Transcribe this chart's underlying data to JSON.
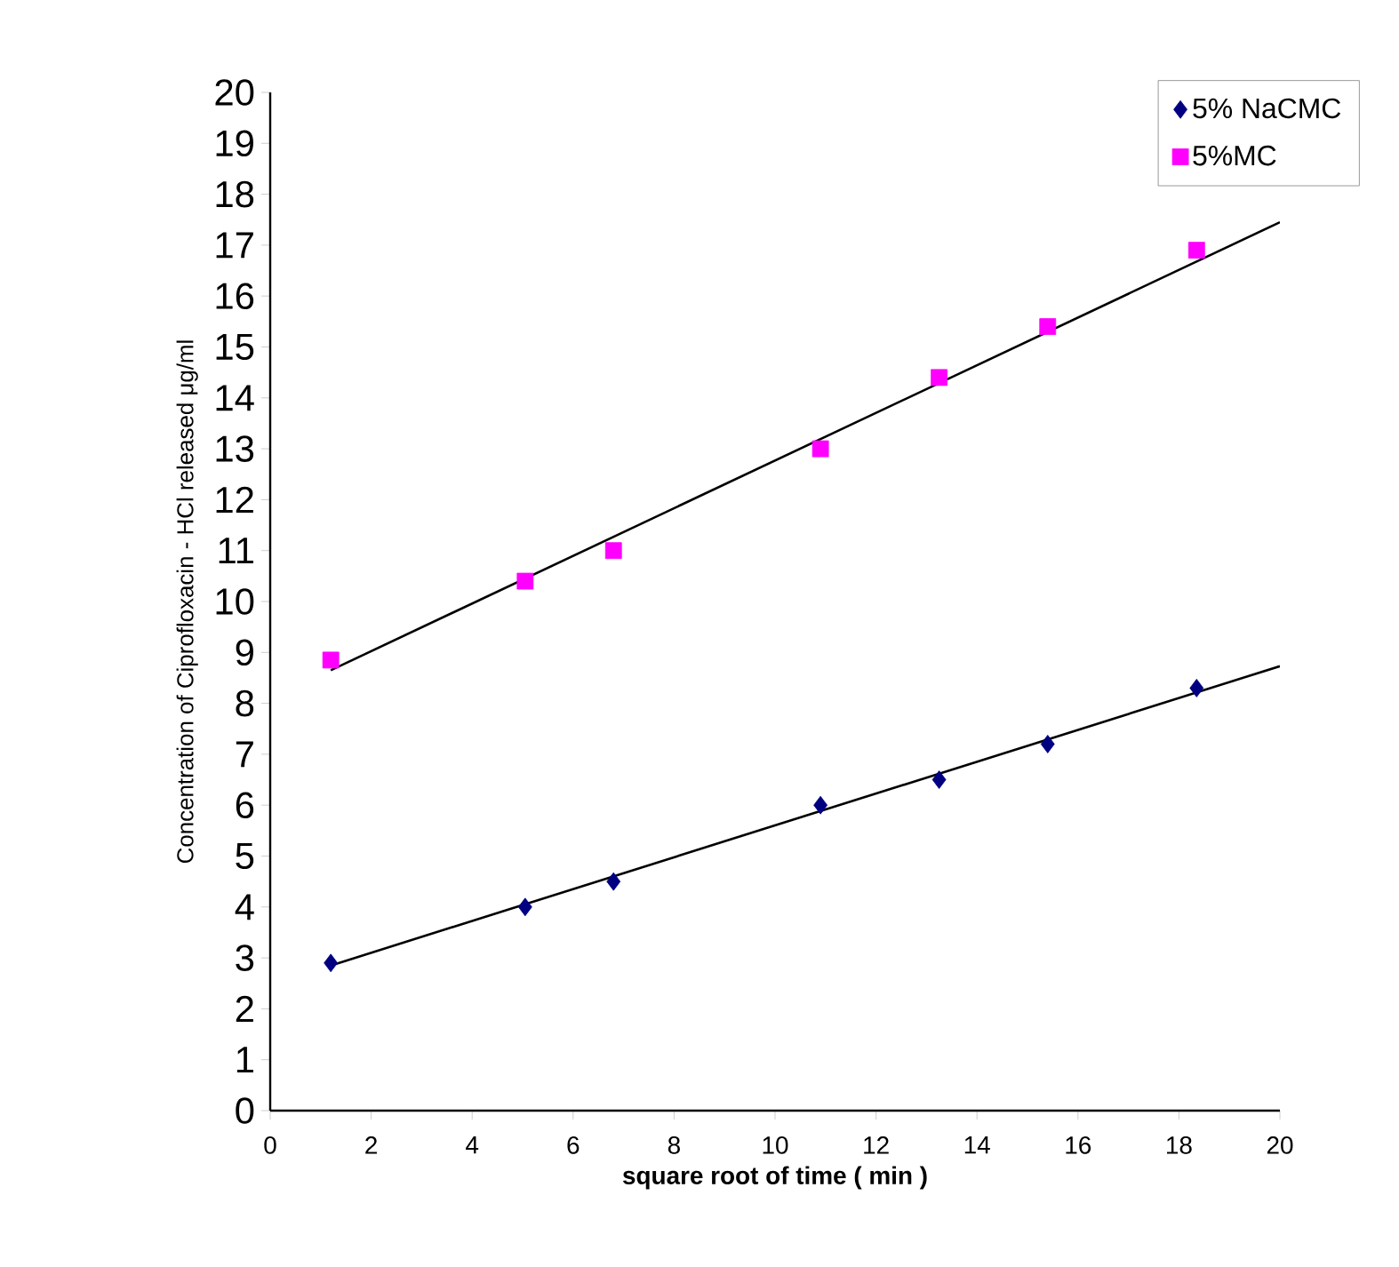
{
  "chart_data": {
    "type": "scatter",
    "xlabel": "square root of time ( min )",
    "ylabel": "Concentration of Ciprofloxacin - HCl released  μg/ml",
    "xlim": [
      0,
      20
    ],
    "ylim": [
      0,
      20
    ],
    "xticks": [
      0,
      2,
      4,
      6,
      8,
      10,
      12,
      14,
      16,
      18,
      20
    ],
    "yticks": [
      0,
      1,
      2,
      3,
      4,
      5,
      6,
      7,
      8,
      9,
      10,
      11,
      12,
      13,
      14,
      15,
      16,
      17,
      18,
      19,
      20
    ],
    "legend": "top right",
    "grid": false,
    "series": [
      {
        "name": "5% NaCMC",
        "marker": "diamond",
        "color": "#000080",
        "x": [
          1.2,
          5.05,
          6.8,
          10.9,
          13.25,
          15.4,
          18.35
        ],
        "values": [
          2.9,
          4.0,
          4.5,
          6.0,
          6.5,
          7.2,
          8.3
        ]
      },
      {
        "name": "5%MC",
        "marker": "square",
        "color": "#ff00ff",
        "x": [
          1.2,
          5.05,
          6.8,
          10.9,
          13.25,
          15.4,
          18.35
        ],
        "values": [
          8.85,
          10.4,
          11.0,
          13.0,
          14.4,
          15.4,
          16.9
        ]
      },
      {
        "type": "line",
        "marker": "none",
        "line_style": "solid",
        "color": "#000000",
        "x": [
          1.2,
          20
        ],
        "values": [
          2.85,
          8.73
        ]
      },
      {
        "type": "line",
        "marker": "none",
        "line_style": "solid",
        "color": "#000000",
        "x": [
          1.2,
          20
        ],
        "values": [
          8.65,
          17.45
        ]
      }
    ]
  }
}
